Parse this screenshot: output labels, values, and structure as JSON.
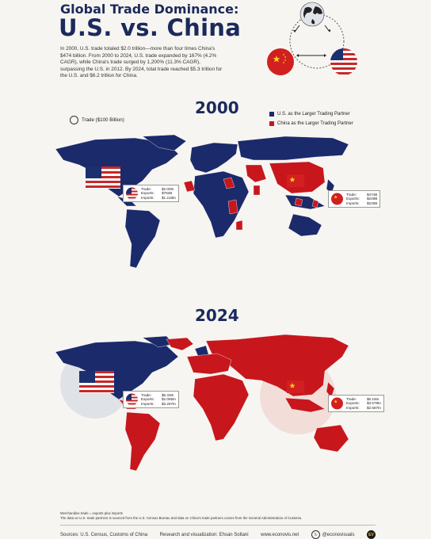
{
  "header": {
    "title_line1": "Global Trade Dominance:",
    "title_line2": "U.S. vs. China",
    "intro": "In 2000, U.S. trade totaled $2.0 trillion—more than four times China's $474 billion. From 2000 to 2024, U.S. trade expanded by 167% (4.2% CAGR), while China's trade surged by 1,200% (11.3% CAGR), surpassing the U.S. in 2012. By 2024, total trade reached $5.3 trillion for the U.S. and $6.2 trillion for China."
  },
  "legend": {
    "trade_key": "Trade ($100 Billion)",
    "us_label": "U.S. as the Larger Trading Partner",
    "china_label": "China as the Larger Trading Partner"
  },
  "colors": {
    "us": "#1b2a6b",
    "china": "#c8161d",
    "navy_text": "#1b2a5c"
  },
  "panels": [
    {
      "year": "2000",
      "us_box": {
        "trade": "$2.00tn",
        "exports": "$782B",
        "imports": "$1.218tn"
      },
      "china_box": {
        "trade": "$474B",
        "exports": "$249B",
        "imports": "$225B"
      }
    },
    {
      "year": "2024",
      "us_box": {
        "trade": "$5.33tn",
        "exports": "$2.065tn",
        "imports": "$3.267tn"
      },
      "china_box": {
        "trade": "$6.16tn",
        "exports": "$3.579tn",
        "imports": "$2.587tn"
      }
    }
  ],
  "box_labels": {
    "trade": "Trade:",
    "exports": "Exports:",
    "imports": "Imports:"
  },
  "notes": {
    "line1": "Merchandise trade = exports plus imports",
    "line2": "The data on U.S. trade partners is sourced from the U.S. Census Bureau and data on China's trade partners comes from the General Administration of Customs."
  },
  "footer": {
    "sources": "Sources: U.S. Census, Customs of China",
    "credit": "Research and visualization: Ehsan Soltani",
    "site": "www.econovis.net",
    "handle": "@econovisuals",
    "logo": "EV"
  }
}
